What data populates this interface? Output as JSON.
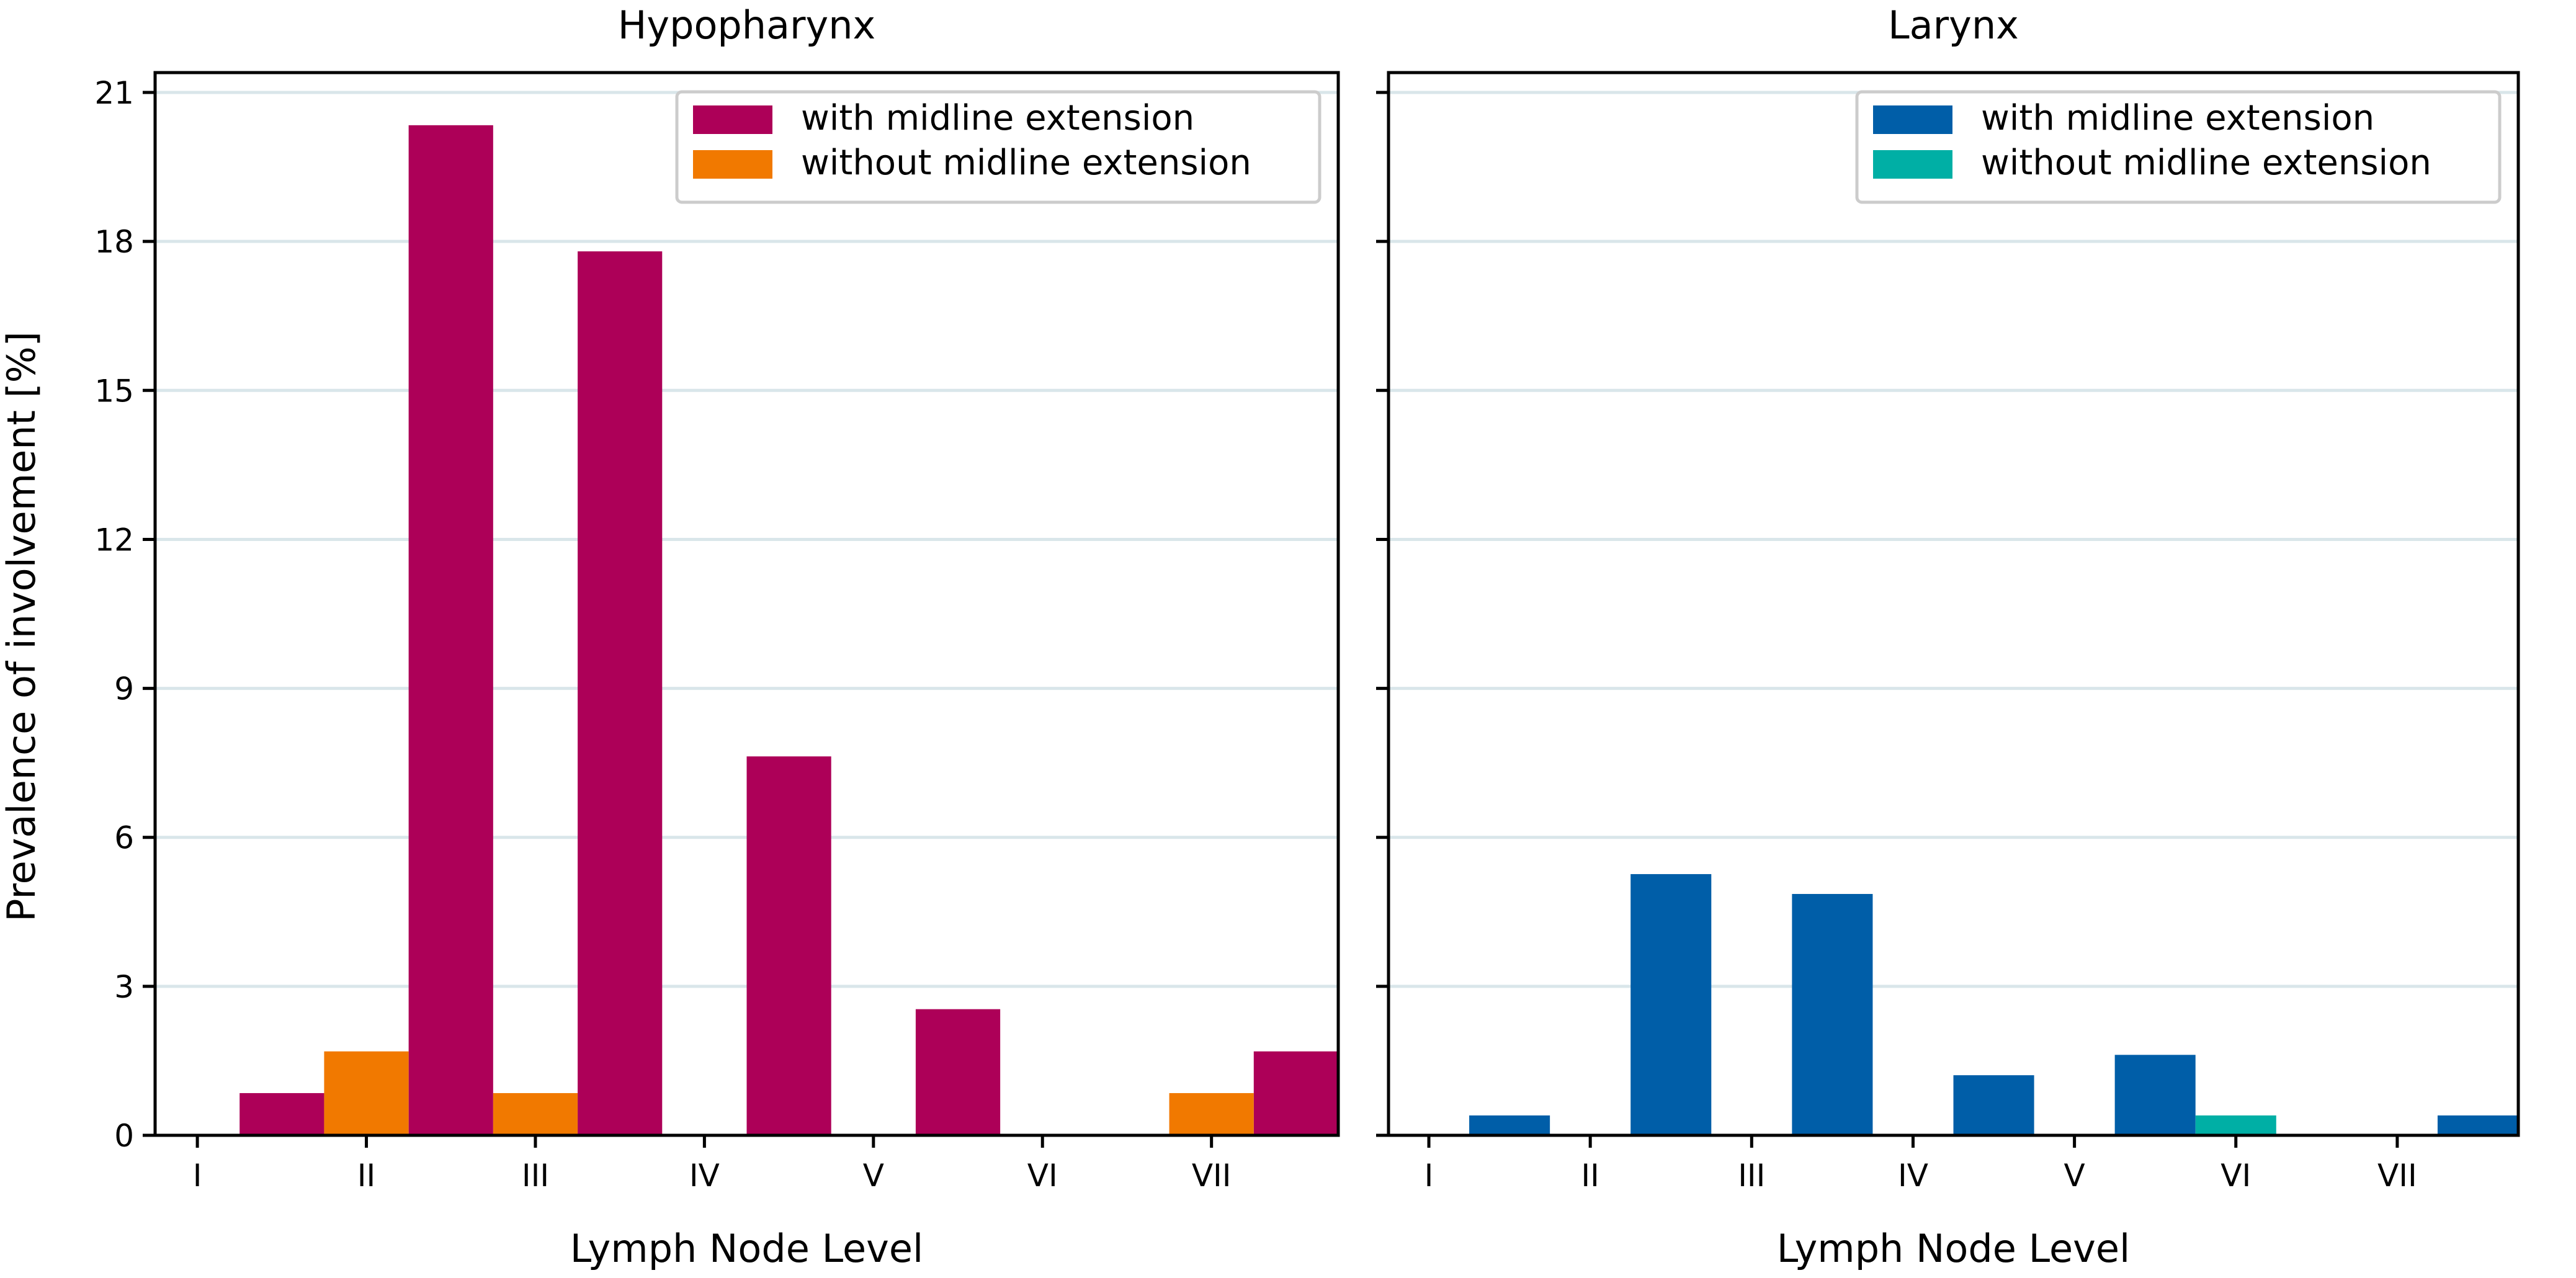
{
  "figure": {
    "ylabel": "Prevalence of involvement [%]"
  },
  "chart_data": [
    {
      "type": "bar",
      "title": "Hypopharynx",
      "xlabel": "Lymph Node Level",
      "ylabel": "Prevalence of involvement [%]",
      "categories": [
        "I",
        "II",
        "III",
        "IV",
        "V",
        "VI",
        "VII"
      ],
      "ylim": [
        0,
        21.4
      ],
      "yticks": [
        0,
        3,
        6,
        9,
        12,
        15,
        18,
        21
      ],
      "grid": "horizontal",
      "legend_position": "top-right",
      "series": [
        {
          "name": "with midline extension",
          "color": "#AD0058",
          "values": [
            0.85,
            20.34,
            17.8,
            7.63,
            2.54,
            0,
            1.69
          ]
        },
        {
          "name": "without midline extension",
          "color": "#F17900",
          "values": [
            0,
            1.69,
            0.85,
            0,
            0,
            0,
            0.85
          ]
        }
      ]
    },
    {
      "type": "bar",
      "title": "Larynx",
      "xlabel": "Lymph Node Level",
      "ylabel": "",
      "categories": [
        "I",
        "II",
        "III",
        "IV",
        "V",
        "VI",
        "VII"
      ],
      "ylim": [
        0,
        21.4
      ],
      "yticks": [
        0,
        3,
        6,
        9,
        12,
        15,
        18,
        21
      ],
      "grid": "horizontal",
      "legend_position": "top-right",
      "series": [
        {
          "name": "with midline extension",
          "color": "#005EA8",
          "values": [
            0.4,
            5.26,
            4.86,
            1.21,
            1.62,
            0,
            0.4
          ]
        },
        {
          "name": "without midline extension",
          "color": "#00AFA5",
          "values": [
            0,
            0,
            0,
            0,
            0,
            0.4,
            0
          ]
        }
      ]
    }
  ]
}
